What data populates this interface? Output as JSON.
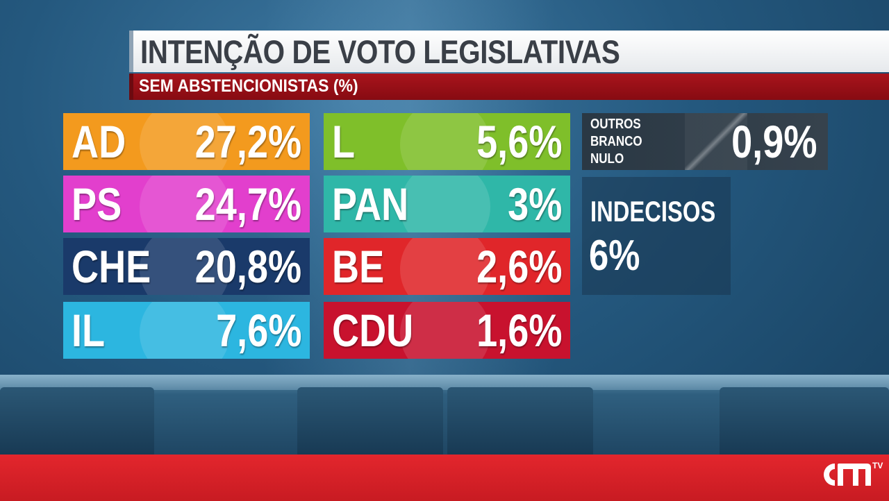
{
  "title": "INTENÇÃO DE VOTO LEGISLATIVAS",
  "subtitle": "SEM ABSTENCIONISTAS (%)",
  "parties": [
    {
      "name": "AD",
      "label": "27,2%",
      "color": "#f39a1e"
    },
    {
      "name": "PS",
      "label": "24,7%",
      "color": "#e23fcd"
    },
    {
      "name": "CHE",
      "label": "20,8%",
      "color": "#1a3a6a"
    },
    {
      "name": "IL",
      "label": "7,6%",
      "color": "#2cb6e0"
    },
    {
      "name": "L",
      "label": "5,6%",
      "color": "#7fbf2a"
    },
    {
      "name": "PAN",
      "label": "3%",
      "color": "#2fb7a8"
    },
    {
      "name": "BE",
      "label": "2,6%",
      "color": "#e0262a"
    },
    {
      "name": "CDU",
      "label": "1,6%",
      "color": "#c8122e"
    }
  ],
  "others": {
    "labels": [
      "OUTROS",
      "BRANCO",
      "NULO"
    ],
    "value": "0,9%"
  },
  "undecided": {
    "label": "INDECISOS",
    "value": "6%"
  },
  "brand": {
    "logo_icon": "cm-logo-icon",
    "tv_label": "TV"
  },
  "chart_data": {
    "type": "table",
    "title": "INTENÇÃO DE VOTO LEGISLATIVAS",
    "subtitle": "SEM ABSTENCIONISTAS (%)",
    "categories": [
      "AD",
      "PS",
      "CHE",
      "IL",
      "L",
      "PAN",
      "BE",
      "CDU",
      "OUTROS / BRANCO / NULO",
      "INDECISOS"
    ],
    "values": [
      27.2,
      24.7,
      20.8,
      7.6,
      5.6,
      3,
      2.6,
      1.6,
      0.9,
      6
    ]
  }
}
